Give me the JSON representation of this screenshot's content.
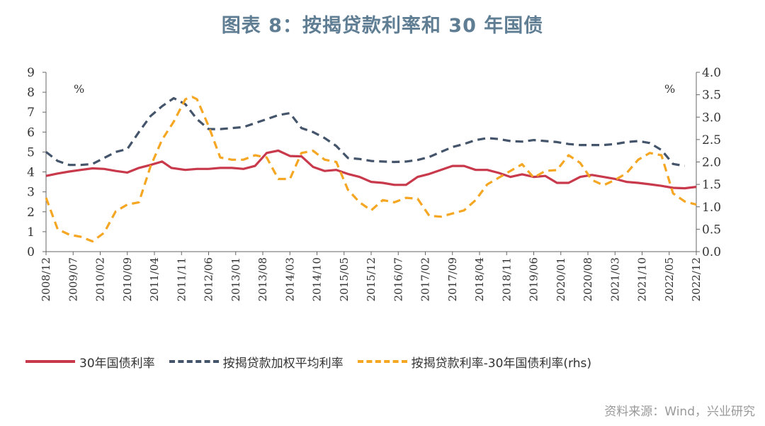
{
  "chart_data": {
    "type": "line",
    "title": "图表 8：按揭贷款利率和 30 年国债",
    "y_unit_left": "%",
    "y_unit_right": "%",
    "ylim_left": [
      0,
      9
    ],
    "ylim_right": [
      0,
      4
    ],
    "yticks_left": [
      "0",
      "1",
      "2",
      "3",
      "4",
      "5",
      "6",
      "7",
      "8",
      "9"
    ],
    "yticks_right": [
      "0.0",
      "0.5",
      "1.0",
      "1.5",
      "2.0",
      "2.5",
      "3.0",
      "3.5",
      "4.0"
    ],
    "x_labels": [
      "2008/12",
      "2009/07",
      "2010/02",
      "2010/09",
      "2011/04",
      "2011/11",
      "2012/06",
      "2013/01",
      "2013/08",
      "2014/03",
      "2014/10",
      "2015/05",
      "2015/12",
      "2016/07",
      "2017/02",
      "2017/09",
      "2018/04",
      "2018/11",
      "2019/06",
      "2020/01",
      "2020/08",
      "2021/03",
      "2021/10",
      "2022/05",
      "2022/12"
    ],
    "series": [
      {
        "name": "30年国债利率",
        "axis": "left",
        "color": "#c8394b",
        "style": "solid",
        "points": [
          [
            0,
            3.8
          ],
          [
            0.5,
            3.92
          ],
          [
            1,
            4.02
          ],
          [
            1.5,
            4.1
          ],
          [
            2,
            4.18
          ],
          [
            2.5,
            4.15
          ],
          [
            3,
            4.05
          ],
          [
            3.5,
            3.97
          ],
          [
            4,
            4.2
          ],
          [
            4.5,
            4.35
          ],
          [
            5,
            4.52
          ],
          [
            5.4,
            4.2
          ],
          [
            6,
            4.1
          ],
          [
            6.5,
            4.15
          ],
          [
            7,
            4.15
          ],
          [
            7.5,
            4.2
          ],
          [
            8,
            4.2
          ],
          [
            8.5,
            4.15
          ],
          [
            9,
            4.3
          ],
          [
            9.5,
            4.95
          ],
          [
            10,
            5.07
          ],
          [
            10.5,
            4.8
          ],
          [
            11,
            4.78
          ],
          [
            11.5,
            4.25
          ],
          [
            12,
            4.05
          ],
          [
            12.5,
            4.1
          ],
          [
            13,
            3.9
          ],
          [
            13.5,
            3.75
          ],
          [
            14,
            3.5
          ],
          [
            14.5,
            3.45
          ],
          [
            15,
            3.35
          ],
          [
            15.5,
            3.35
          ],
          [
            16,
            3.75
          ],
          [
            16.5,
            3.9
          ],
          [
            17,
            4.1
          ],
          [
            17.5,
            4.3
          ],
          [
            18,
            4.3
          ],
          [
            18.5,
            4.1
          ],
          [
            19,
            4.1
          ],
          [
            19.5,
            3.95
          ],
          [
            20,
            3.75
          ],
          [
            20.5,
            3.88
          ],
          [
            21,
            3.75
          ],
          [
            21.5,
            3.8
          ],
          [
            22,
            3.45
          ],
          [
            22.5,
            3.45
          ],
          [
            23,
            3.75
          ],
          [
            23.5,
            3.85
          ],
          [
            24,
            3.75
          ],
          [
            24.5,
            3.65
          ],
          [
            25,
            3.5
          ],
          [
            25.5,
            3.45
          ],
          [
            26,
            3.38
          ],
          [
            26.5,
            3.3
          ],
          [
            27,
            3.2
          ],
          [
            27.5,
            3.18
          ],
          [
            28,
            3.25
          ]
        ]
      },
      {
        "name": "按揭贷款加权平均利率",
        "axis": "left",
        "color": "#44546a",
        "style": "dashed",
        "points": [
          [
            0,
            5.0
          ],
          [
            0.5,
            4.55
          ],
          [
            1,
            4.35
          ],
          [
            1.5,
            4.35
          ],
          [
            2,
            4.4
          ],
          [
            2.5,
            4.7
          ],
          [
            3,
            5.0
          ],
          [
            3.5,
            5.15
          ],
          [
            4,
            6.0
          ],
          [
            4.5,
            6.8
          ],
          [
            5,
            7.3
          ],
          [
            5.5,
            7.7
          ],
          [
            6,
            7.4
          ],
          [
            6.5,
            6.65
          ],
          [
            7,
            6.15
          ],
          [
            7.5,
            6.15
          ],
          [
            8,
            6.2
          ],
          [
            8.5,
            6.25
          ],
          [
            9,
            6.45
          ],
          [
            9.5,
            6.65
          ],
          [
            10,
            6.85
          ],
          [
            10.5,
            6.95
          ],
          [
            11,
            6.2
          ],
          [
            11.5,
            6.0
          ],
          [
            12,
            5.7
          ],
          [
            12.5,
            5.3
          ],
          [
            13,
            4.7
          ],
          [
            13.5,
            4.65
          ],
          [
            14,
            4.55
          ],
          [
            14.5,
            4.52
          ],
          [
            15,
            4.5
          ],
          [
            15.5,
            4.52
          ],
          [
            16,
            4.6
          ],
          [
            16.5,
            4.75
          ],
          [
            17,
            5.0
          ],
          [
            17.5,
            5.25
          ],
          [
            18,
            5.4
          ],
          [
            18.5,
            5.6
          ],
          [
            19,
            5.7
          ],
          [
            19.5,
            5.65
          ],
          [
            20,
            5.55
          ],
          [
            20.5,
            5.52
          ],
          [
            21,
            5.6
          ],
          [
            21.5,
            5.55
          ],
          [
            22,
            5.5
          ],
          [
            22.5,
            5.4
          ],
          [
            23,
            5.35
          ],
          [
            23.5,
            5.35
          ],
          [
            24,
            5.35
          ],
          [
            24.5,
            5.4
          ],
          [
            25,
            5.5
          ],
          [
            25.5,
            5.55
          ],
          [
            26,
            5.45
          ],
          [
            26.5,
            5.1
          ],
          [
            27,
            4.4
          ],
          [
            27.5,
            4.3
          ]
        ]
      },
      {
        "name": "按揭贷款利率-30年国债利率(rhs)",
        "axis": "right",
        "color": "#f5a623",
        "style": "dashed",
        "points": [
          [
            0,
            1.2
          ],
          [
            0.5,
            0.5
          ],
          [
            1,
            0.38
          ],
          [
            1.5,
            0.33
          ],
          [
            2,
            0.23
          ],
          [
            2.5,
            0.42
          ],
          [
            3,
            0.9
          ],
          [
            3.5,
            1.05
          ],
          [
            4,
            1.1
          ],
          [
            4.5,
            1.9
          ],
          [
            5,
            2.5
          ],
          [
            5.5,
            2.9
          ],
          [
            6,
            3.4
          ],
          [
            6.3,
            3.45
          ],
          [
            6.5,
            3.4
          ],
          [
            7,
            2.8
          ],
          [
            7.5,
            2.1
          ],
          [
            8,
            2.05
          ],
          [
            8.5,
            2.05
          ],
          [
            9,
            2.15
          ],
          [
            9.5,
            2.1
          ],
          [
            10,
            1.62
          ],
          [
            10.5,
            1.62
          ],
          [
            11,
            2.2
          ],
          [
            11.5,
            2.25
          ],
          [
            12,
            2.05
          ],
          [
            12.5,
            2.0
          ],
          [
            13,
            1.38
          ],
          [
            13.5,
            1.1
          ],
          [
            14,
            0.92
          ],
          [
            14.5,
            1.15
          ],
          [
            15,
            1.1
          ],
          [
            15.5,
            1.2
          ],
          [
            16,
            1.18
          ],
          [
            16.5,
            0.8
          ],
          [
            17,
            0.78
          ],
          [
            17.5,
            0.85
          ],
          [
            18,
            0.92
          ],
          [
            18.5,
            1.15
          ],
          [
            19,
            1.5
          ],
          [
            19.5,
            1.65
          ],
          [
            20,
            1.8
          ],
          [
            20.5,
            1.95
          ],
          [
            21,
            1.65
          ],
          [
            21.5,
            1.8
          ],
          [
            22,
            1.82
          ],
          [
            22.5,
            2.15
          ],
          [
            23,
            1.98
          ],
          [
            23.5,
            1.6
          ],
          [
            24,
            1.48
          ],
          [
            24.5,
            1.6
          ],
          [
            25,
            1.75
          ],
          [
            25.5,
            2.05
          ],
          [
            26,
            2.2
          ],
          [
            26.5,
            2.15
          ],
          [
            27,
            1.3
          ],
          [
            27.5,
            1.12
          ],
          [
            28,
            1.05
          ]
        ]
      }
    ],
    "legend_position": "bottom"
  },
  "source_text": "资料来源：Wind，兴业研究"
}
